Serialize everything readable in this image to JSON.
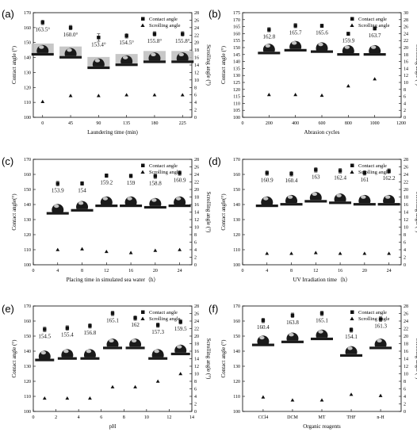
{
  "colors": {
    "marker": "#111111",
    "droplet": "#1a1a1a",
    "substrate": "#bdbdbd"
  },
  "chart_data": [
    {
      "panel": "(a)",
      "type": "scatter",
      "categories": [
        "0",
        "45",
        "90",
        "135",
        "180",
        "225"
      ],
      "x": [
        0,
        45,
        90,
        135,
        180,
        225
      ],
      "xlim": [
        -15,
        240
      ],
      "xticks": [
        "0",
        "45",
        "90",
        "135",
        "180",
        "225"
      ],
      "xlabel": "Laundering time (min)",
      "ylabel": "Contact angle (°)",
      "ylim": [
        100,
        170
      ],
      "yticks": [
        "100",
        "110",
        "120",
        "130",
        "140",
        "150",
        "160",
        "170"
      ],
      "y2label": "Scrolling angle (°)",
      "y2lim": [
        0,
        28
      ],
      "y2ticks": [
        "0",
        "2",
        "4",
        "6",
        "8",
        "10",
        "12",
        "14",
        "16",
        "18",
        "20",
        "22",
        "24",
        "26",
        "28"
      ],
      "legend": [
        "Contact angle",
        "Scrolling angle"
      ],
      "legend_position": "top-right",
      "series": [
        {
          "name": "Contact angle",
          "values": [
            163.5,
            160.0,
            153.4,
            154.5,
            155.8,
            155.8
          ],
          "errors": [
            1.5,
            1.5,
            2.5,
            1.5,
            1.5,
            1.5
          ]
        },
        {
          "name": "Scrolling angle",
          "values": [
            4.2,
            5.8,
            5.8,
            6.0,
            6.0,
            6.0
          ]
        }
      ],
      "data_labels": [
        "163.5°",
        "160.0°",
        "153.4°",
        "154.5°",
        "155.8°",
        "155.8°"
      ],
      "droplet_shelf": true,
      "droplet_y": [
        143,
        141,
        134,
        136,
        138,
        138
      ]
    },
    {
      "panel": "(b)",
      "type": "scatter",
      "categories": [
        "0",
        "200",
        "400",
        "600",
        "800",
        "1000",
        "1200"
      ],
      "x": [
        200,
        400,
        600,
        800,
        1000
      ],
      "xlim": [
        0,
        1200
      ],
      "xticks": [
        "0",
        "200",
        "400",
        "600",
        "800",
        "1000",
        "1200"
      ],
      "xlabel": "Abrasion cycles",
      "ylabel": "Contact angle (°)",
      "ylim": [
        100,
        175
      ],
      "yticks": [
        "100",
        "105",
        "110",
        "115",
        "120",
        "125",
        "130",
        "135",
        "140",
        "145",
        "150",
        "155",
        "160",
        "165",
        "170",
        "175"
      ],
      "y2label": "Scrolling angle (°)",
      "y2lim": [
        0,
        30
      ],
      "y2ticks": [
        "0",
        "2",
        "4",
        "6",
        "8",
        "10",
        "12",
        "14",
        "16",
        "18",
        "20",
        "22",
        "24",
        "26",
        "28",
        "30"
      ],
      "legend": [
        "Contact angle",
        "Scrolling angle"
      ],
      "legend_position": "top-right",
      "series": [
        {
          "name": "Contact angle",
          "values": [
            162.8,
            165.7,
            165.6,
            159.9,
            163.7
          ],
          "errors": [
            1.5,
            1.5,
            1.2,
            1.2,
            1.2
          ]
        },
        {
          "name": "Scrolling angle",
          "values": [
            6.5,
            6.5,
            6.3,
            9.0,
            11.0
          ]
        }
      ],
      "data_labels": [
        "162.8",
        "165.7",
        "165.6",
        "159.9",
        "163.7"
      ],
      "droplet_shelf": false,
      "droplet_y": [
        147,
        149,
        148,
        146,
        146
      ]
    },
    {
      "panel": "(c)",
      "type": "scatter",
      "categories": [
        "0",
        "4",
        "8",
        "12",
        "16",
        "20",
        "24"
      ],
      "x": [
        4,
        8,
        12,
        16,
        20,
        24
      ],
      "xlim": [
        0,
        26
      ],
      "xticks": [
        "0",
        "4",
        "8",
        "12",
        "16",
        "20",
        "24"
      ],
      "xlabel": "Placing time in simulated sea water（h）",
      "ylabel": "Contact angle(°)",
      "ylim": [
        100,
        170
      ],
      "yticks": [
        "100",
        "110",
        "120",
        "130",
        "140",
        "150",
        "160",
        "170"
      ],
      "y2label": "Scrolling angle (°)",
      "y2lim": [
        0,
        28
      ],
      "y2ticks": [
        "0",
        "2",
        "4",
        "6",
        "8",
        "10",
        "12",
        "14",
        "16",
        "18",
        "20",
        "22",
        "24",
        "26",
        "28"
      ],
      "legend": [
        "Contact angle",
        "Scrolling angle"
      ],
      "legend_position": "top-right",
      "series": [
        {
          "name": "Contact angle",
          "values": [
            153.9,
            154.0,
            159.2,
            159.0,
            158.8,
            160.9
          ],
          "errors": [
            1.5,
            1.2,
            1.2,
            1.2,
            1.5,
            1.5
          ]
        },
        {
          "name": "Scrolling angle",
          "values": [
            4.0,
            4.2,
            3.5,
            3.2,
            3.8,
            4.0
          ]
        }
      ],
      "data_labels": [
        "153.9",
        "154",
        "159.2",
        "159",
        "158.8",
        "160.9"
      ],
      "droplet_shelf": false,
      "droplet_y": [
        135,
        137,
        140,
        140,
        139,
        140
      ]
    },
    {
      "panel": "(d)",
      "type": "scatter",
      "categories": [
        "0",
        "4",
        "8",
        "12",
        "16",
        "20",
        "24"
      ],
      "x": [
        4,
        8,
        12,
        16,
        20,
        24
      ],
      "xlim": [
        0,
        26
      ],
      "xticks": [
        "0",
        "4",
        "8",
        "12",
        "16",
        "20",
        "24"
      ],
      "xlabel": "UV Irradiation time（h）",
      "ylabel": "Contact angle(°)",
      "ylim": [
        100,
        170
      ],
      "yticks": [
        "100",
        "110",
        "120",
        "130",
        "140",
        "150",
        "160",
        "170"
      ],
      "y2label": "Scrolling angle (°)",
      "y2lim": [
        0,
        28
      ],
      "y2ticks": [
        "0",
        "2",
        "4",
        "6",
        "8",
        "10",
        "12",
        "14",
        "16",
        "18",
        "20",
        "22",
        "24",
        "26",
        "28"
      ],
      "legend": [
        "Contact angle",
        "Scrolling angle"
      ],
      "legend_position": "top-right",
      "series": [
        {
          "name": "Contact angle",
          "values": [
            160.9,
            160.4,
            163.0,
            162.4,
            161.0,
            162.2
          ],
          "errors": [
            1.5,
            1.5,
            1.5,
            1.5,
            1.5,
            1.5
          ]
        },
        {
          "name": "Scrolling angle",
          "values": [
            3.0,
            3.0,
            3.2,
            3.0,
            3.0,
            3.0
          ]
        }
      ],
      "data_labels": [
        "160.9",
        "160.4",
        "163",
        "162.4",
        "161",
        "162.2"
      ],
      "droplet_shelf": false,
      "droplet_y": [
        140,
        141,
        143,
        142,
        141,
        141
      ]
    },
    {
      "panel": "(e)",
      "type": "scatter",
      "categories": [
        "0",
        "2",
        "4",
        "6",
        "8",
        "10",
        "12",
        "14"
      ],
      "x": [
        1,
        3,
        5,
        7,
        9,
        11,
        13
      ],
      "xlim": [
        0,
        14
      ],
      "xticks": [
        "0",
        "2",
        "4",
        "6",
        "8",
        "10",
        "12",
        "14"
      ],
      "xlabel": "pH",
      "ylabel": "Contact angle (°)",
      "ylim": [
        100,
        170
      ],
      "yticks": [
        "100",
        "110",
        "120",
        "130",
        "140",
        "150",
        "160",
        "170"
      ],
      "y2label": "Scrolling angle (°)",
      "y2lim": [
        0,
        28
      ],
      "y2ticks": [
        "0",
        "2",
        "4",
        "6",
        "8",
        "10",
        "12",
        "14",
        "16",
        "18",
        "20",
        "22",
        "24",
        "26",
        "28"
      ],
      "legend": [
        "Contact angle",
        "Scrolling angle"
      ],
      "legend_position": "top-right",
      "series": [
        {
          "name": "Contact angle",
          "values": [
            154.5,
            155.4,
            156.8,
            165.1,
            162.0,
            157.3,
            159.5
          ],
          "errors": [
            1.5,
            1.5,
            1.5,
            1.5,
            1.5,
            1.5,
            1.5
          ]
        },
        {
          "name": "Scrolling angle",
          "values": [
            3.5,
            3.5,
            3.5,
            6.5,
            6.5,
            8.0,
            10.0
          ]
        }
      ],
      "data_labels": [
        "154.5",
        "155.4",
        "156.8",
        "165.1",
        "162",
        "157.3",
        "159.5"
      ],
      "droplet_shelf": false,
      "droplet_y": [
        135,
        136,
        136,
        143,
        143,
        136,
        139
      ]
    },
    {
      "panel": "(f)",
      "type": "scatter",
      "categories": [
        "CCl4",
        "DCM",
        "MT",
        "THF",
        "n-H"
      ],
      "x": [
        1,
        2,
        3,
        4,
        5
      ],
      "xlim": [
        0.3,
        5.7
      ],
      "xticks": [
        "CCl4",
        "DCM",
        "MT",
        "THF",
        "n-H"
      ],
      "xlabel": "Organic reagents",
      "ylabel": "Contact angle (°)",
      "ylim": [
        100,
        170
      ],
      "yticks": [
        "100",
        "110",
        "120",
        "130",
        "140",
        "150",
        "160",
        "170"
      ],
      "y2label": "Scrolling angle (°)",
      "y2lim": [
        0,
        28
      ],
      "y2ticks": [
        "0",
        "2",
        "4",
        "6",
        "8",
        "10",
        "12",
        "14",
        "16",
        "18",
        "20",
        "22",
        "24",
        "26",
        "28"
      ],
      "legend": [
        "Contact angle",
        "Scrolling angle"
      ],
      "legend_position": "top-right",
      "series": [
        {
          "name": "Contact angle",
          "values": [
            160.4,
            163.8,
            165.1,
            154.1,
            161.3
          ],
          "errors": [
            1.5,
            1.5,
            1.5,
            1.5,
            1.5
          ]
        },
        {
          "name": "Scrolling angle",
          "values": [
            3.8,
            3.0,
            3.0,
            4.5,
            4.2
          ]
        }
      ],
      "data_labels": [
        "160.4",
        "163.8",
        "165.1",
        "154.1",
        "161.3"
      ],
      "droplet_shelf": false,
      "droplet_y": [
        145,
        147,
        149,
        138,
        143
      ]
    }
  ]
}
